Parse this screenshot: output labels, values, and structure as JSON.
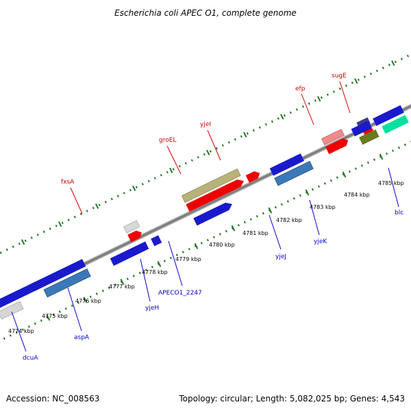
{
  "title": "Escherichia coli APEC O1, complete genome",
  "footer": {
    "accession": "Accession: NC_008563",
    "summary": "Topology: circular; Length: 5,082,025 bp; Genes: 4,543"
  },
  "colors": {
    "forward_label": "#cc0000",
    "reverse_label": "#0000cc",
    "axis": "#777777",
    "tick": "#227722"
  },
  "scale": {
    "ticks": [
      {
        "label": "4774 kbp"
      },
      {
        "label": "4775 kbp"
      },
      {
        "label": "4776 kbp"
      },
      {
        "label": "4777 kbp"
      },
      {
        "label": "4778 kbp"
      },
      {
        "label": "4779 kbp"
      },
      {
        "label": "4780 kbp"
      },
      {
        "label": "4781 kbp"
      },
      {
        "label": "4782 kbp"
      },
      {
        "label": "4783 kbp"
      },
      {
        "label": "4784 kbp"
      },
      {
        "label": "4785 kbp"
      }
    ]
  },
  "forward_labels": [
    {
      "name": "fxsA"
    },
    {
      "name": "groEL"
    },
    {
      "name": "yjeI"
    },
    {
      "name": "efp"
    },
    {
      "name": "sugE"
    }
  ],
  "reverse_labels": [
    {
      "name": "dcuA"
    },
    {
      "name": "aspA"
    },
    {
      "name": "yjeH"
    },
    {
      "name": "APECO1_2247"
    },
    {
      "name": "yjeJ"
    },
    {
      "name": "yjeK"
    },
    {
      "name": "blc"
    }
  ]
}
